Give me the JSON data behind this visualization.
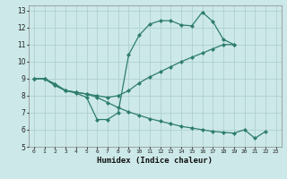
{
  "xlabel": "Humidex (Indice chaleur)",
  "background_color": "#cce8e8",
  "grid_color": "#aacccc",
  "line_color": "#2e7d6e",
  "xlim": [
    -0.5,
    23.5
  ],
  "ylim": [
    5,
    13.3
  ],
  "xticks": [
    0,
    1,
    2,
    3,
    4,
    5,
    6,
    7,
    8,
    9,
    10,
    11,
    12,
    13,
    14,
    15,
    16,
    17,
    18,
    19,
    20,
    21,
    22,
    23
  ],
  "yticks": [
    5,
    6,
    7,
    8,
    9,
    10,
    11,
    12,
    13
  ],
  "line1_x": [
    0,
    1,
    2,
    3,
    4,
    5,
    6,
    7,
    8,
    9,
    10,
    11,
    12,
    13,
    14,
    15,
    16,
    17,
    18,
    19
  ],
  "line1_y": [
    9.0,
    9.0,
    8.7,
    8.3,
    8.15,
    7.9,
    6.6,
    6.6,
    7.0,
    10.4,
    11.55,
    12.2,
    12.4,
    12.4,
    12.15,
    12.1,
    12.9,
    12.35,
    11.3,
    11.0
  ],
  "line2_x": [
    0,
    1,
    2,
    3,
    4,
    5,
    6,
    7,
    8,
    9,
    10,
    11,
    12,
    13,
    14,
    15,
    16,
    17,
    18,
    19
  ],
  "line2_y": [
    9.0,
    9.0,
    8.6,
    8.3,
    8.2,
    8.1,
    8.0,
    7.9,
    8.0,
    8.3,
    8.75,
    9.1,
    9.4,
    9.7,
    10.0,
    10.25,
    10.5,
    10.75,
    11.0,
    11.0
  ],
  "line3_x": [
    0,
    1,
    2,
    3,
    4,
    5,
    6,
    7,
    8,
    9,
    10,
    11,
    12,
    13,
    14,
    15,
    16,
    17,
    18,
    19,
    20,
    21,
    22
  ],
  "line3_y": [
    9.0,
    9.0,
    8.6,
    8.3,
    8.2,
    8.1,
    7.9,
    7.6,
    7.3,
    7.05,
    6.85,
    6.65,
    6.5,
    6.35,
    6.2,
    6.1,
    6.0,
    5.9,
    5.85,
    5.8,
    6.0,
    5.5,
    5.9
  ],
  "markersize": 2.0,
  "linewidth": 0.9
}
